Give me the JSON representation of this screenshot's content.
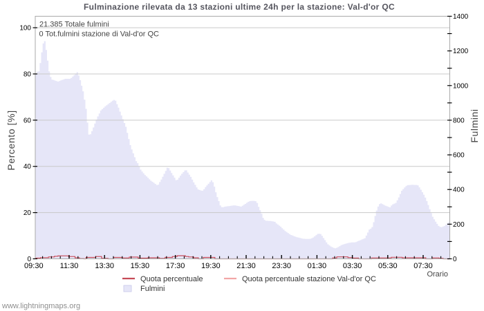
{
  "page": {
    "watermark": "www.lightningmaps.org",
    "background": "#ffffff"
  },
  "chart_data": {
    "type": "area",
    "title": "Fulminazione rilevata da 13 stazioni ultime 24h per la stazione: Val-d'or QC",
    "annotations": [
      "21.385 Totale fulmini",
      "0 Tot.fulmini stazione di Val-d'or QC"
    ],
    "x_axis": {
      "label": "Orario",
      "start_time": "09:30",
      "minor_tick_minutes": 30,
      "label_interval_minutes": 120,
      "span_minutes": 1410,
      "tick_labels": [
        "09:30",
        "11:30",
        "13:30",
        "15:30",
        "17:30",
        "19:30",
        "21:30",
        "23:30",
        "01:30",
        "03:30",
        "05:30",
        "07:30"
      ]
    },
    "y_left": {
      "label": "Percento  [%]",
      "min": 0,
      "max": 100,
      "ticks": [
        0,
        20,
        40,
        60,
        80,
        100
      ]
    },
    "y_right": {
      "label": "Fulmini",
      "min": 0,
      "max": 1400,
      "minor_tick_step": 100,
      "labels": [
        0,
        200,
        400,
        600,
        800,
        1000,
        1200,
        1400
      ]
    },
    "grid": "horizontal",
    "legend": {
      "position": "bottom",
      "items": [
        {
          "label": "Quota percentuale",
          "type": "line",
          "color": "#c64a57"
        },
        {
          "label": "Quota percentuale stazione Val-d'or QC",
          "type": "line",
          "color": "#f2a6a6"
        },
        {
          "label": "Fulmini",
          "type": "area",
          "color": "#e6e6f8"
        }
      ]
    },
    "series": [
      {
        "name": "Fulmini",
        "type": "area",
        "axis": "right",
        "fill": "#e6e6f8",
        "points": [
          [
            5,
            1065
          ],
          [
            10,
            1080
          ],
          [
            15,
            1082
          ],
          [
            19,
            1117
          ],
          [
            23,
            1167
          ],
          [
            27,
            1216
          ],
          [
            31,
            1252
          ],
          [
            34,
            1265
          ],
          [
            38,
            1230
          ],
          [
            42,
            1181
          ],
          [
            46,
            1131
          ],
          [
            50,
            1082
          ],
          [
            54,
            1053
          ],
          [
            59,
            1035
          ],
          [
            68,
            1030
          ],
          [
            80,
            1023
          ],
          [
            92,
            1031
          ],
          [
            104,
            1039
          ],
          [
            122,
            1039
          ],
          [
            132,
            1055
          ],
          [
            141,
            1071
          ],
          [
            146,
            1079
          ],
          [
            155,
            1031
          ],
          [
            165,
            967
          ],
          [
            174,
            880
          ],
          [
            179,
            808
          ],
          [
            183,
            720
          ],
          [
            188,
            712
          ],
          [
            197,
            744
          ],
          [
            211,
            808
          ],
          [
            225,
            856
          ],
          [
            240,
            880
          ],
          [
            254,
            898
          ],
          [
            265,
            912
          ],
          [
            273,
            920
          ],
          [
            284,
            877
          ],
          [
            293,
            836
          ],
          [
            310,
            762
          ],
          [
            326,
            649
          ],
          [
            345,
            564
          ],
          [
            352,
            547
          ],
          [
            361,
            511
          ],
          [
            375,
            484
          ],
          [
            385,
            468
          ],
          [
            394,
            452
          ],
          [
            404,
            440
          ],
          [
            418,
            422
          ],
          [
            434,
            470
          ],
          [
            452,
            532
          ],
          [
            467,
            490
          ],
          [
            482,
            449
          ],
          [
            497,
            485
          ],
          [
            513,
            516
          ],
          [
            530,
            473
          ],
          [
            540,
            441
          ],
          [
            547,
            421
          ],
          [
            554,
            401
          ],
          [
            565,
            394
          ],
          [
            571,
            393
          ],
          [
            582,
            418
          ],
          [
            591,
            435
          ],
          [
            601,
            455
          ],
          [
            608,
            433
          ],
          [
            611,
            408
          ],
          [
            615,
            384
          ],
          [
            619,
            360
          ],
          [
            624,
            340
          ],
          [
            626,
            326
          ],
          [
            631,
            304
          ],
          [
            637,
            296
          ],
          [
            647,
            302
          ],
          [
            659,
            304
          ],
          [
            677,
            309
          ],
          [
            694,
            304
          ],
          [
            700,
            301
          ],
          [
            714,
            316
          ],
          [
            722,
            326
          ],
          [
            729,
            333
          ],
          [
            739,
            335
          ],
          [
            753,
            332
          ],
          [
            760,
            300
          ],
          [
            770,
            260
          ],
          [
            776,
            232
          ],
          [
            783,
            220
          ],
          [
            800,
            218
          ],
          [
            814,
            215
          ],
          [
            821,
            203
          ],
          [
            835,
            185
          ],
          [
            849,
            162
          ],
          [
            868,
            139
          ],
          [
            889,
            125
          ],
          [
            910,
            116
          ],
          [
            929,
            114
          ],
          [
            936,
            116
          ],
          [
            947,
            125
          ],
          [
            957,
            140
          ],
          [
            961,
            145
          ],
          [
            971,
            143
          ],
          [
            980,
            120
          ],
          [
            994,
            85
          ],
          [
            1006,
            70
          ],
          [
            1018,
            60
          ],
          [
            1027,
            65
          ],
          [
            1041,
            80
          ],
          [
            1058,
            89
          ],
          [
            1074,
            95
          ],
          [
            1088,
            95
          ],
          [
            1097,
            102
          ],
          [
            1104,
            107
          ],
          [
            1121,
            120
          ],
          [
            1135,
            169
          ],
          [
            1144,
            178
          ],
          [
            1151,
            217
          ],
          [
            1158,
            270
          ],
          [
            1168,
            315
          ],
          [
            1175,
            320
          ],
          [
            1184,
            312
          ],
          [
            1191,
            306
          ],
          [
            1205,
            297
          ],
          [
            1212,
            312
          ],
          [
            1226,
            324
          ],
          [
            1236,
            358
          ],
          [
            1245,
            393
          ],
          [
            1257,
            416
          ],
          [
            1264,
            425
          ],
          [
            1280,
            427
          ],
          [
            1299,
            426
          ],
          [
            1306,
            410
          ],
          [
            1318,
            376
          ],
          [
            1327,
            347
          ],
          [
            1336,
            306
          ],
          [
            1343,
            272
          ],
          [
            1350,
            243
          ],
          [
            1360,
            214
          ],
          [
            1372,
            185
          ],
          [
            1381,
            183
          ],
          [
            1390,
            190
          ],
          [
            1402,
            208
          ],
          [
            1410,
            218
          ]
        ]
      },
      {
        "name": "Quota percentuale",
        "type": "step-line",
        "axis": "left",
        "color": "#c64a57",
        "points": [
          [
            5,
            0.3
          ],
          [
            23,
            0.5
          ],
          [
            50,
            0.8
          ],
          [
            70,
            1.1
          ],
          [
            82,
            1.3
          ],
          [
            118,
            1.0
          ],
          [
            140,
            0.45
          ],
          [
            155,
            0.1
          ],
          [
            170,
            0
          ],
          [
            177,
            0.6
          ],
          [
            210,
            1.0
          ],
          [
            230,
            0.2
          ],
          [
            252,
            0
          ],
          [
            270,
            0.6
          ],
          [
            300,
            0.4
          ],
          [
            324,
            0.75
          ],
          [
            354,
            0.3
          ],
          [
            387,
            0.45
          ],
          [
            426,
            0.15
          ],
          [
            445,
            0.6
          ],
          [
            470,
            1.0
          ],
          [
            486,
            1.35
          ],
          [
            514,
            1.0
          ],
          [
            525,
            0.8
          ],
          [
            542,
            0.45
          ],
          [
            558,
            0
          ],
          [
            575,
            0.6
          ],
          [
            614,
            0
          ],
          [
            1013,
            0.4
          ],
          [
            1027,
            0.85
          ],
          [
            1065,
            0.55
          ],
          [
            1081,
            0.35
          ],
          [
            1101,
            0
          ],
          [
            1145,
            0.4
          ],
          [
            1212,
            0.65
          ],
          [
            1249,
            0.45
          ],
          [
            1329,
            0
          ],
          [
            1352,
            0.4
          ],
          [
            1374,
            0.2
          ],
          [
            1388,
            0
          ]
        ]
      },
      {
        "name": "Quota percentuale stazione Val-d'or QC",
        "type": "line",
        "axis": "left",
        "color": "#f2a6a6",
        "points": [
          [
            5,
            0
          ],
          [
            1410,
            0
          ]
        ]
      }
    ],
    "colors": {
      "grid": "#c9c9c9",
      "border": "#a9a9a9",
      "tick": "#000000",
      "title": "#55555e",
      "area_fill": "#e6e6f8"
    }
  }
}
